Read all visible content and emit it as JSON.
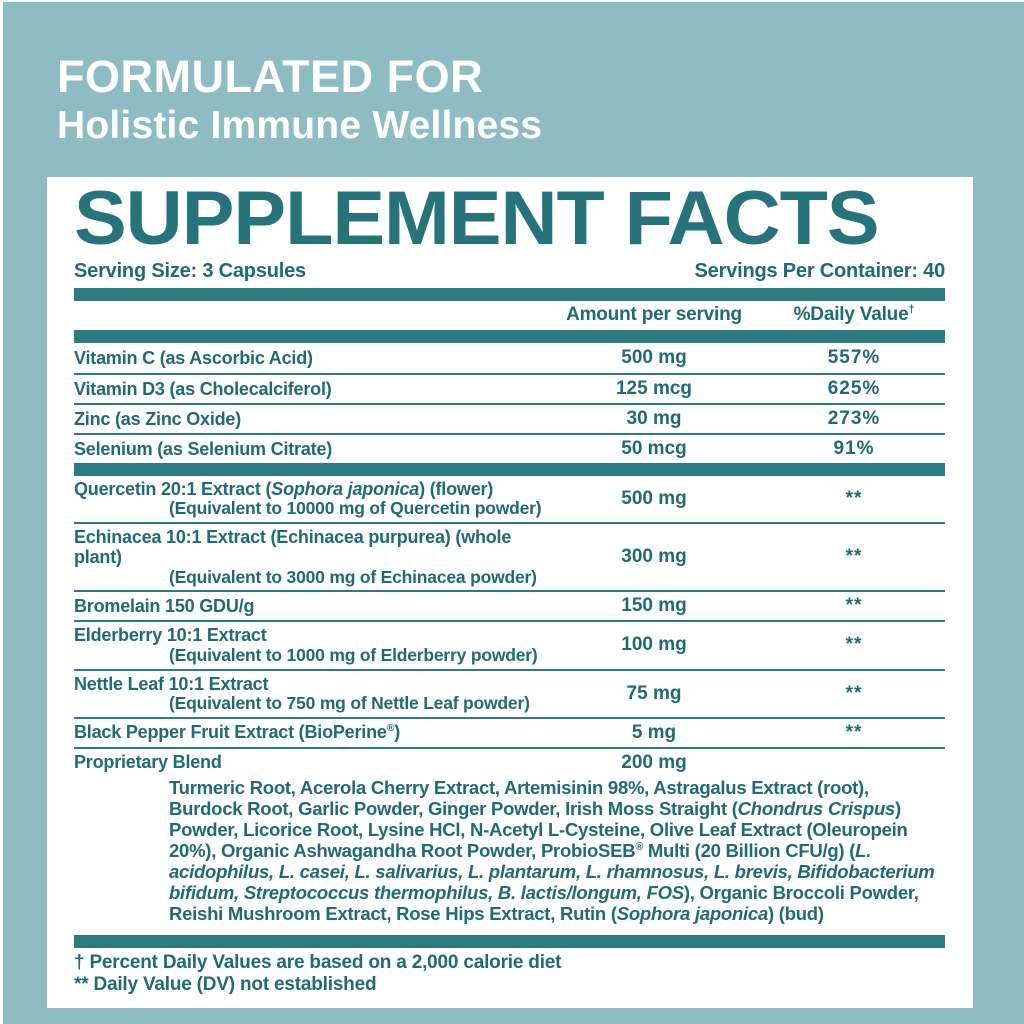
{
  "colors": {
    "background_teal": "#8dbcc2",
    "bar_teal": "#2d7a81",
    "text_teal": "#1f6b73",
    "panel_white": "#ffffff"
  },
  "header": {
    "line1": "FORMULATED FOR",
    "line2": "Holistic Immune Wellness"
  },
  "panel": {
    "title": "SUPPLEMENT FACTS",
    "serving_size": "Serving Size: 3 Capsules",
    "servings_per_container": "Servings Per Container: 40",
    "columns": {
      "amount": [
        {
          "t": "Amount per serving"
        }
      ],
      "daily_value": [
        {
          "t": "%Daily Value"
        },
        {
          "t": "†",
          "sup": true
        }
      ]
    },
    "vitamin_rows": [
      {
        "name": [
          {
            "t": "Vitamin C (as Ascorbic Acid)"
          }
        ],
        "amount": "500 mg",
        "dv": "557%"
      },
      {
        "name": [
          {
            "t": "Vitamin D3 (as Cholecalciferol)"
          }
        ],
        "amount": "125 mcg",
        "dv": "625%"
      },
      {
        "name": [
          {
            "t": "Zinc (as Zinc Oxide)"
          }
        ],
        "amount": "30 mg",
        "dv": "273%"
      },
      {
        "name": [
          {
            "t": "Selenium (as Selenium Citrate)"
          }
        ],
        "amount": "50 mcg",
        "dv": "91%"
      }
    ],
    "botanical_rows": [
      {
        "name": [
          {
            "t": "Quercetin 20:1 Extract ("
          },
          {
            "t": "Sophora japonica",
            "i": true
          },
          {
            "t": ") (flower)"
          }
        ],
        "sub": "(Equivalent to 10000 mg of Quercetin powder)",
        "amount": "500 mg",
        "dv": "**"
      },
      {
        "name": [
          {
            "t": "Echinacea 10:1 Extract (Echinacea purpurea) (whole plant)"
          }
        ],
        "sub": "(Equivalent to 3000 mg of Echinacea powder)",
        "amount": "300 mg",
        "dv": "**"
      },
      {
        "name": [
          {
            "t": "Bromelain 150 GDU/g"
          }
        ],
        "amount": "150 mg",
        "dv": "**"
      },
      {
        "name": [
          {
            "t": "Elderberry 10:1 Extract"
          }
        ],
        "sub": "(Equivalent to 1000 mg of Elderberry powder)",
        "amount": "100 mg",
        "dv": "**"
      },
      {
        "name": [
          {
            "t": "Nettle Leaf 10:1 Extract"
          }
        ],
        "sub": "(Equivalent to 750 mg of Nettle Leaf powder)",
        "amount": "75 mg",
        "dv": "**"
      },
      {
        "name": [
          {
            "t": "Black Pepper Fruit Extract (BioPerine"
          },
          {
            "t": "®",
            "sup": true
          },
          {
            "t": ")"
          }
        ],
        "amount": "5 mg",
        "dv": "**"
      }
    ],
    "proprietary": {
      "name": "Proprietary Blend",
      "amount": "200 mg",
      "dv": "",
      "description": [
        {
          "t": "Turmeric Root, Acerola Cherry Extract, Artemisinin 98%, Astragalus Extract (root), Burdock Root, Garlic Powder, Ginger Powder, Irish Moss Straight ("
        },
        {
          "t": "Chondrus Crispus",
          "i": true
        },
        {
          "t": ") Powder, Licorice Root, Lysine HCl, N-Acetyl L-Cysteine, Olive Leaf Extract (Oleuropein 20%), Organic Ashwagandha Root Powder, ProbioSEB"
        },
        {
          "t": "®",
          "sup": true
        },
        {
          "t": " Multi (20 Billion CFU/g)  ("
        },
        {
          "t": "L. acidophilus, L. casei, L. salivarius, L. plantarum, L. rhamnosus, L. brevis, Bifidobacterium bifidum, Streptococcus thermophilus, B. lactis/longum, FOS",
          "i": true
        },
        {
          "t": "), Organic Broccoli Powder, Reishi Mushroom Extract, Rose Hips Extract, Rutin ("
        },
        {
          "t": "Sophora japonica",
          "i": true
        },
        {
          "t": ") (bud)"
        }
      ]
    },
    "footnotes": [
      "† Percent Daily Values are based on a 2,000 calorie diet",
      "** Daily Value (DV) not established"
    ]
  }
}
